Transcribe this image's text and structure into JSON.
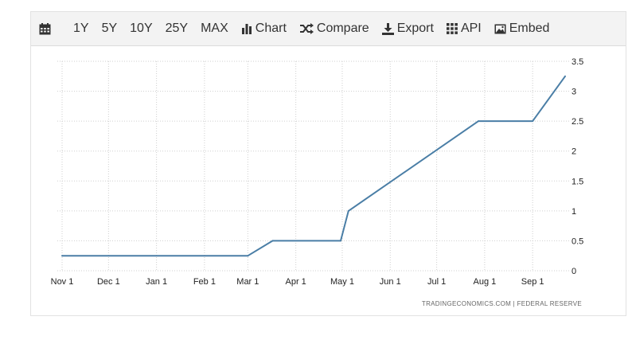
{
  "toolbar": {
    "range_1y": "1Y",
    "range_5y": "5Y",
    "range_10y": "10Y",
    "range_25y": "25Y",
    "range_max": "MAX",
    "chart": "Chart",
    "compare": "Compare",
    "export": "Export",
    "api": "API",
    "embed": "Embed"
  },
  "attribution": {
    "site": "TRADINGECONOMICS.COM",
    "separator": "|",
    "source": "FEDERAL RESERVE"
  },
  "colors": {
    "line": "#4a7ea6",
    "grid": "#cfcfcf",
    "toolbar_bg": "#f3f3f3"
  },
  "chart_data": {
    "type": "line",
    "title": "",
    "xlabel": "",
    "ylabel": "",
    "grid": true,
    "y_axis_side": "right",
    "ylim": [
      0,
      3.5
    ],
    "y_ticks": [
      "0",
      "0.5",
      "1",
      "1.5",
      "2",
      "2.5",
      "3",
      "3.5"
    ],
    "x_ticks": [
      "Nov 1",
      "Dec 1",
      "Jan 1",
      "Feb 1",
      "Mar 1",
      "Apr 1",
      "May 1",
      "Jun 1",
      "Jul 1",
      "Aug 1",
      "Sep 1"
    ],
    "series": [
      {
        "x": [
          "Nov 1",
          "Mar 1",
          "Mar 17",
          "Apr 30",
          "May 5",
          "Jul 28",
          "Sep 1",
          "Sep 22"
        ],
        "values": [
          0.25,
          0.25,
          0.5,
          0.5,
          1.0,
          2.5,
          2.5,
          3.25
        ]
      }
    ]
  }
}
